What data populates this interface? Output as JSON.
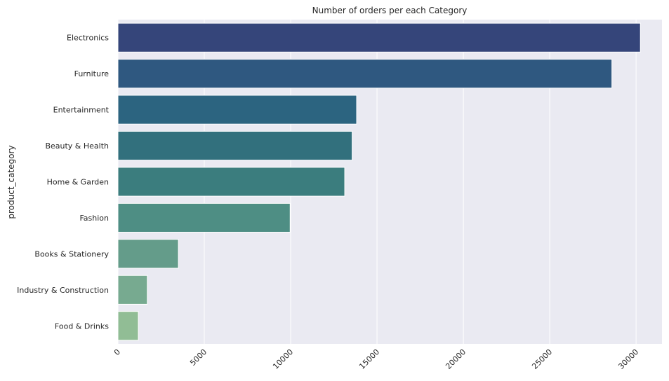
{
  "chart_data": {
    "type": "bar",
    "orientation": "horizontal",
    "title": "Number of orders per each Category",
    "xlabel": "",
    "ylabel": "product_category",
    "categories": [
      "Electronics",
      "Furniture",
      "Entertainment",
      "Beauty & Health",
      "Home & Garden",
      "Fashion",
      "Books & Stationery",
      "Industry & Construction",
      "Food & Drinks"
    ],
    "values": [
      30250,
      28600,
      13820,
      13560,
      13130,
      9970,
      3500,
      1700,
      1180
    ],
    "xlim": [
      0,
      31500
    ],
    "x_ticks": [
      0,
      5000,
      10000,
      15000,
      20000,
      25000,
      30000
    ],
    "x_tick_labels": [
      "0",
      "5000",
      "10000",
      "15000",
      "20000",
      "25000",
      "30000"
    ],
    "tick_label_rotation_deg": 45,
    "grid": true,
    "legend": "none",
    "colors": {
      "background": "#eaeaf2",
      "grid": "#ffffff",
      "bar_edge": "#ffffff",
      "bars": [
        "#35457a",
        "#2f5880",
        "#2c6480",
        "#32707d",
        "#3b7d7e",
        "#4e8e84",
        "#649c8a",
        "#77aa90",
        "#91bd95"
      ]
    }
  }
}
